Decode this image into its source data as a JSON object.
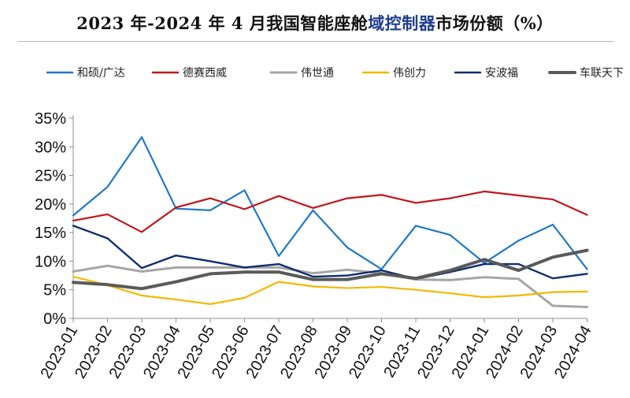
{
  "title": {
    "prefix": "2023 年-2024 年 4 月我国智能座舱",
    "highlight": "域控制器",
    "suffix": "市场份额（%）"
  },
  "chart_data": {
    "type": "line",
    "title": "2023 年-2024 年 4 月我国智能座舱域控制器市场份额（%）",
    "xlabel": "",
    "ylabel": "",
    "ylim": [
      0,
      35
    ],
    "yticks": [
      "0%",
      "5%",
      "10%",
      "15%",
      "20%",
      "25%",
      "30%",
      "35%"
    ],
    "grid": false,
    "legend_position": "top",
    "categories": [
      "2023-01",
      "2023-02",
      "2023-03",
      "2023-04",
      "2023-05",
      "2023-06",
      "2023-07",
      "2023-08",
      "2023-09",
      "2023-10",
      "2023-11",
      "2023-12",
      "2024-01",
      "2024-02",
      "2024-03",
      "2024-04"
    ],
    "series": [
      {
        "name": "和硕/广达",
        "color": "#1f78c8",
        "width": 2.2,
        "values": [
          18,
          23,
          31.7,
          19.2,
          18.9,
          22.4,
          10.9,
          18.9,
          12.4,
          8.6,
          16.2,
          14.6,
          9.7,
          13.6,
          16.4,
          8.6
        ]
      },
      {
        "name": "德赛西威",
        "color": "#c0161c",
        "width": 2.2,
        "values": [
          17.1,
          18.2,
          15.1,
          19.4,
          21.0,
          19.1,
          21.4,
          19.3,
          21.0,
          21.6,
          20.2,
          21.0,
          22.2,
          21.5,
          20.8,
          18.1
        ]
      },
      {
        "name": "伟世通",
        "color": "#a6a6a6",
        "width": 3,
        "values": [
          8.2,
          9.2,
          8.2,
          8.9,
          8.9,
          8.9,
          8.9,
          7.9,
          8.5,
          7.9,
          6.8,
          6.7,
          7.2,
          6.9,
          2.2,
          2.0
        ]
      },
      {
        "name": "伟创力",
        "color": "#f2b800",
        "width": 2.2,
        "values": [
          7.3,
          5.8,
          4.0,
          3.3,
          2.5,
          3.6,
          6.4,
          5.6,
          5.3,
          5.5,
          5.0,
          4.4,
          3.7,
          4.0,
          4.6,
          4.7
        ]
      },
      {
        "name": "安波福",
        "color": "#0f2d6e",
        "width": 2.4,
        "values": [
          16.2,
          14.0,
          8.8,
          11.0,
          10.0,
          8.9,
          9.5,
          7.3,
          7.5,
          8.4,
          6.9,
          8.1,
          9.5,
          9.5,
          7.0,
          7.8
        ]
      },
      {
        "name": "车联天下",
        "color": "#5a5a5a",
        "width": 4,
        "values": [
          6.3,
          5.9,
          5.2,
          6.4,
          7.8,
          8.1,
          8.1,
          6.8,
          6.8,
          7.8,
          7.0,
          8.4,
          10.3,
          8.4,
          10.7,
          11.9
        ]
      }
    ]
  }
}
